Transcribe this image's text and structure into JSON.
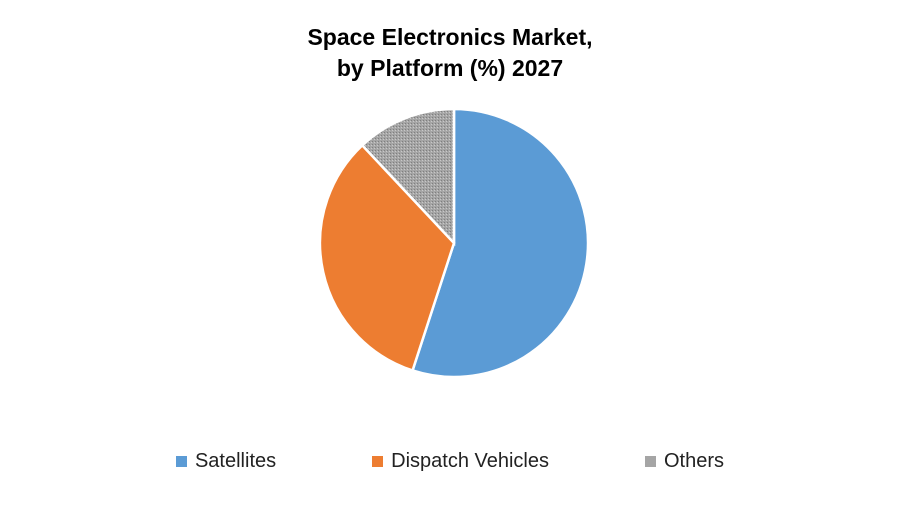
{
  "chart_data": {
    "type": "pie",
    "title_lines": [
      "Space Electronics Market,",
      "by Platform (%) 2027"
    ],
    "categories": [
      "Satellites",
      "Dispatch Vehicles",
      "Others"
    ],
    "values": [
      55,
      33,
      12
    ],
    "colors": [
      "#5b9bd5",
      "#ed7d31",
      "#a5a5a5"
    ],
    "start_angle_deg": 0,
    "direction": "clockwise",
    "legend_position": "bottom"
  }
}
